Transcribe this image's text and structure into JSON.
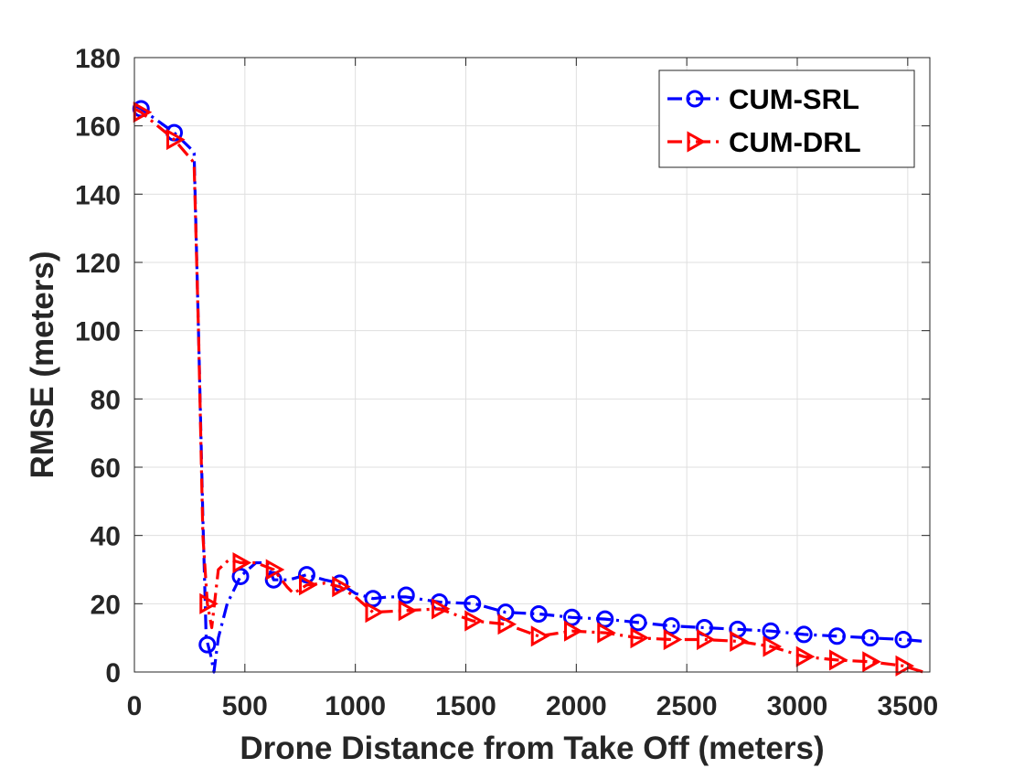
{
  "chart_data": {
    "type": "line",
    "title": "",
    "xlabel": "Drone Distance from Take Off (meters)",
    "ylabel": "RMSE (meters)",
    "xlim": [
      0,
      3600
    ],
    "ylim": [
      0,
      180
    ],
    "xticks": [
      "0",
      "500",
      "1000",
      "1500",
      "2000",
      "2500",
      "3000",
      "3500"
    ],
    "yticks": [
      "0",
      "20",
      "40",
      "60",
      "80",
      "100",
      "120",
      "140",
      "160",
      "180"
    ],
    "grid": true,
    "legend_position": "top-right",
    "series": [
      {
        "name": "CUM-SRL",
        "color": "#0000ff",
        "marker": "circle",
        "line_style": "dash-dot",
        "line_x": [
          0,
          30,
          180,
          260,
          270,
          290,
          310,
          325,
          345,
          360,
          380,
          420,
          480,
          550,
          600,
          630,
          700,
          780,
          860,
          930,
          1000,
          1080,
          1150,
          1230,
          1380,
          1540,
          1680,
          1830,
          1980,
          2130,
          2280,
          2430,
          2580,
          2730,
          2880,
          3030,
          3180,
          3330,
          3480,
          3570
        ],
        "line_y": [
          166,
          165,
          158,
          153,
          152,
          100,
          45,
          10,
          5,
          0,
          10,
          20,
          28,
          32,
          32,
          27,
          27,
          28.5,
          27,
          26,
          23,
          21.5,
          22,
          22,
          20.5,
          20,
          17.5,
          17,
          16,
          15.5,
          14.5,
          13.5,
          13,
          12.5,
          12,
          11,
          10.5,
          10,
          9.5,
          9
        ],
        "marker_x": [
          30,
          180,
          330,
          480,
          630,
          780,
          930,
          1080,
          1230,
          1380,
          1530,
          1680,
          1830,
          1980,
          2130,
          2280,
          2430,
          2580,
          2730,
          2880,
          3030,
          3180,
          3330,
          3480
        ],
        "marker_y": [
          165,
          158,
          8,
          28,
          27,
          28.5,
          26,
          21.5,
          22.5,
          20.5,
          20,
          17.5,
          17,
          16,
          15.5,
          14.5,
          13.5,
          13,
          12.5,
          12,
          11,
          10.5,
          10,
          9.5
        ]
      },
      {
        "name": "CUM-DRL",
        "color": "#ff0000",
        "marker": "triangle-right",
        "line_style": "dash-dot",
        "line_x": [
          0,
          30,
          180,
          260,
          270,
          290,
          310,
          330,
          350,
          380,
          430,
          480,
          550,
          630,
          690,
          720,
          780,
          860,
          930,
          1000,
          1080,
          1230,
          1380,
          1530,
          1680,
          1830,
          1980,
          2130,
          2280,
          2430,
          2580,
          2730,
          2880,
          3030,
          3180,
          3330,
          3480,
          3570
        ],
        "line_y": [
          165,
          164,
          156,
          150,
          149,
          100,
          40,
          20,
          13,
          30,
          33,
          32,
          32,
          30,
          25,
          23,
          25.5,
          26,
          25,
          22,
          17.5,
          18,
          18.5,
          15,
          14,
          10.5,
          12,
          11.5,
          10,
          9.5,
          9.5,
          9,
          7.5,
          4.5,
          3.5,
          3,
          1.8,
          0
        ],
        "marker_x": [
          30,
          180,
          330,
          480,
          630,
          780,
          930,
          1080,
          1230,
          1380,
          1530,
          1680,
          1830,
          1980,
          2130,
          2280,
          2430,
          2580,
          2730,
          2880,
          3030,
          3180,
          3330,
          3480
        ],
        "marker_y": [
          164,
          156,
          20,
          32,
          30,
          25.5,
          25,
          17.5,
          18,
          18.5,
          15,
          14,
          10.5,
          12,
          11.5,
          10,
          9.5,
          9.5,
          9,
          7.5,
          4.5,
          3.5,
          3,
          1.8
        ]
      }
    ]
  }
}
